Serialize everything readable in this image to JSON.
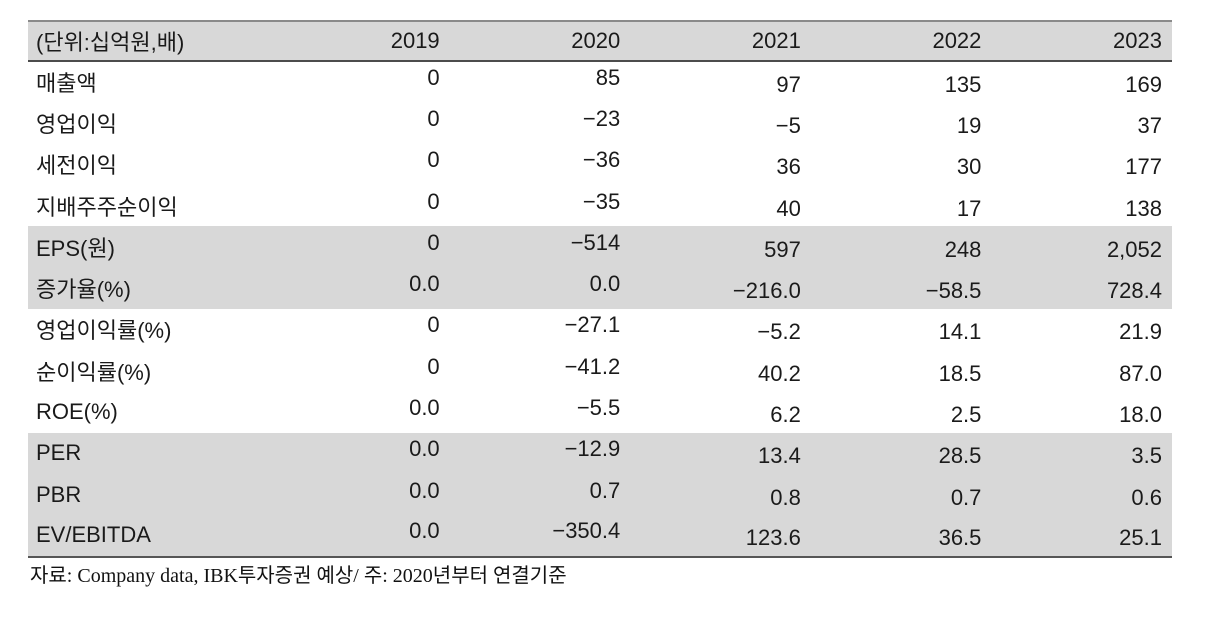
{
  "table": {
    "unit_label": "(단위:십억원,배)",
    "years": [
      "2019",
      "2020",
      "2021",
      "2022",
      "2023"
    ],
    "rows": [
      {
        "label": "매출액",
        "values": [
          "0",
          "85",
          "97",
          "135",
          "169"
        ],
        "band": "white"
      },
      {
        "label": "영업이익",
        "values": [
          "0",
          "-23",
          "-5",
          "19",
          "37"
        ],
        "band": "white"
      },
      {
        "label": "세전이익",
        "values": [
          "0",
          "-36",
          "36",
          "30",
          "177"
        ],
        "band": "white"
      },
      {
        "label": "지배주주순이익",
        "values": [
          "0",
          "-35",
          "40",
          "17",
          "138"
        ],
        "band": "white"
      },
      {
        "label": "EPS(원)",
        "values": [
          "0",
          "-514",
          "597",
          "248",
          "2,052"
        ],
        "band": "gray"
      },
      {
        "label": "증가율(%)",
        "values": [
          "0.0",
          "0.0",
          "-216.0",
          "-58.5",
          "728.4"
        ],
        "band": "gray"
      },
      {
        "label": "영업이익률(%)",
        "values": [
          "0",
          "-27.1",
          "-5.2",
          "14.1",
          "21.9"
        ],
        "band": "white"
      },
      {
        "label": "순이익률(%)",
        "values": [
          "0",
          "-41.2",
          "40.2",
          "18.5",
          "87.0"
        ],
        "band": "white"
      },
      {
        "label": "ROE(%)",
        "values": [
          "0.0",
          "-5.5",
          "6.2",
          "2.5",
          "18.0"
        ],
        "band": "white"
      },
      {
        "label": "PER",
        "values": [
          "0.0",
          "-12.9",
          "13.4",
          "28.5",
          "3.5"
        ],
        "band": "gray"
      },
      {
        "label": "PBR",
        "values": [
          "0.0",
          "0.7",
          "0.8",
          "0.7",
          "0.6"
        ],
        "band": "gray"
      },
      {
        "label": "EV/EBITDA",
        "values": [
          "0.0",
          "-350.4",
          "123.6",
          "36.5",
          "25.1"
        ],
        "band": "gray"
      }
    ]
  },
  "footer": {
    "source_note": "자료: Company data, IBK투자증권 예상/ 주: 2020년부터 연결기준"
  },
  "colors": {
    "band_gray": "#d8d8d8",
    "border_top": "#8a8a8a",
    "border_under_header": "#4c4c4c",
    "border_bottom": "#565656",
    "text": "#1a1a1a",
    "background": "#ffffff"
  }
}
